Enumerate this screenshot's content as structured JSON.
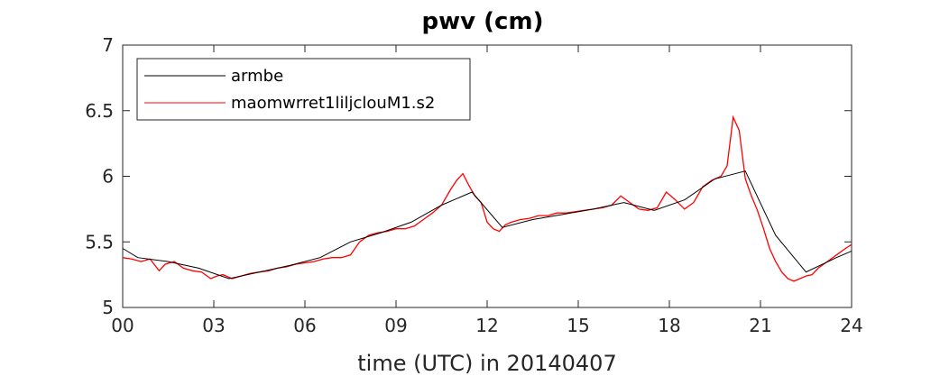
{
  "chart_data": {
    "type": "line",
    "title": "pwv  (cm)",
    "xlabel": "time (UTC) in 20140407",
    "ylabel": "",
    "xlim": [
      0,
      24
    ],
    "ylim": [
      5,
      7
    ],
    "x_ticks": [
      0,
      3,
      6,
      9,
      12,
      15,
      18,
      21,
      24
    ],
    "x_tick_labels": [
      "00",
      "03",
      "06",
      "09",
      "12",
      "15",
      "18",
      "21",
      "24"
    ],
    "y_ticks": [
      5,
      5.5,
      6,
      6.5,
      7
    ],
    "y_tick_labels": [
      "5",
      "5.5",
      "6",
      "6.5",
      "7"
    ],
    "grid": false,
    "legend_position": "top-left",
    "series": [
      {
        "name": "armbe",
        "color": "#000000",
        "x": [
          0,
          0.5,
          1.5,
          2.5,
          3.5,
          4.5,
          5.5,
          6.5,
          7.5,
          8.5,
          9.5,
          10.5,
          11.5,
          12.5,
          13.5,
          14.5,
          15.5,
          16.5,
          17.5,
          18.5,
          19.5,
          20.5,
          21.5,
          22.5,
          23.5,
          24
        ],
        "y": [
          5.45,
          5.38,
          5.35,
          5.3,
          5.22,
          5.27,
          5.32,
          5.38,
          5.5,
          5.57,
          5.65,
          5.78,
          5.88,
          5.61,
          5.67,
          5.71,
          5.75,
          5.8,
          5.74,
          5.82,
          5.98,
          6.04,
          5.55,
          5.27,
          5.38,
          5.43
        ]
      },
      {
        "name": "maomwrret1liljclouM1.s2",
        "color": "#ff0000",
        "x": [
          0,
          0.3,
          0.6,
          0.9,
          1.2,
          1.4,
          1.7,
          2.0,
          2.3,
          2.6,
          2.9,
          3.1,
          3.3,
          3.6,
          3.9,
          4.2,
          4.5,
          4.8,
          5.1,
          5.4,
          5.7,
          6.0,
          6.3,
          6.6,
          6.9,
          7.2,
          7.5,
          7.8,
          8.1,
          8.4,
          8.7,
          9.0,
          9.3,
          9.6,
          9.9,
          10.2,
          10.5,
          10.8,
          11.0,
          11.2,
          11.4,
          11.6,
          11.8,
          12.0,
          12.2,
          12.4,
          12.6,
          12.8,
          13.1,
          13.4,
          13.7,
          14.0,
          14.3,
          14.6,
          14.9,
          15.2,
          15.5,
          15.8,
          16.1,
          16.4,
          16.7,
          17.0,
          17.3,
          17.6,
          17.9,
          18.2,
          18.5,
          18.8,
          19.1,
          19.4,
          19.7,
          19.9,
          20.1,
          20.3,
          20.5,
          20.7,
          20.9,
          21.1,
          21.3,
          21.5,
          21.7,
          21.9,
          22.1,
          22.3,
          22.5,
          22.7,
          22.9,
          23.2,
          23.5,
          23.8,
          24.0
        ],
        "y": [
          5.38,
          5.37,
          5.35,
          5.37,
          5.28,
          5.33,
          5.35,
          5.3,
          5.28,
          5.27,
          5.22,
          5.24,
          5.25,
          5.22,
          5.24,
          5.26,
          5.27,
          5.28,
          5.3,
          5.31,
          5.33,
          5.34,
          5.35,
          5.37,
          5.38,
          5.38,
          5.4,
          5.5,
          5.55,
          5.57,
          5.58,
          5.6,
          5.6,
          5.62,
          5.67,
          5.72,
          5.78,
          5.9,
          5.97,
          6.02,
          5.93,
          5.85,
          5.8,
          5.65,
          5.6,
          5.58,
          5.63,
          5.65,
          5.67,
          5.68,
          5.7,
          5.7,
          5.72,
          5.72,
          5.73,
          5.74,
          5.75,
          5.76,
          5.78,
          5.85,
          5.8,
          5.75,
          5.74,
          5.76,
          5.88,
          5.82,
          5.75,
          5.8,
          5.92,
          5.97,
          6.0,
          6.08,
          6.45,
          6.35,
          5.98,
          5.85,
          5.74,
          5.6,
          5.45,
          5.35,
          5.27,
          5.22,
          5.2,
          5.22,
          5.24,
          5.25,
          5.3,
          5.35,
          5.4,
          5.45,
          5.48
        ]
      }
    ]
  }
}
